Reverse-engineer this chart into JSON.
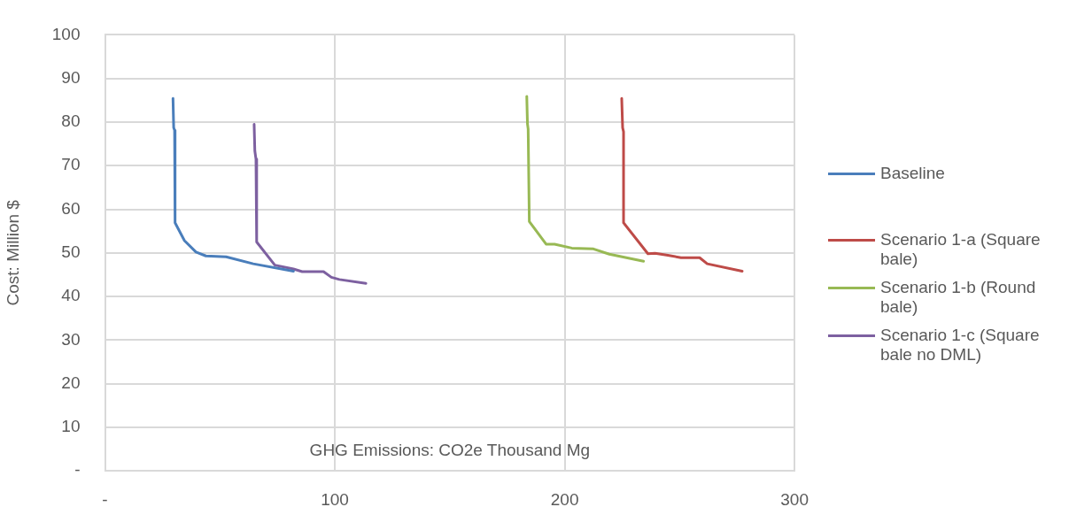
{
  "chart_data": {
    "type": "line",
    "xlabel": "GHG Emissions: CO2e Thousand Mg",
    "ylabel": "Cost: Million $",
    "xlim": [
      0,
      300
    ],
    "xticks": [
      {
        "value": 0,
        "label": "-"
      },
      100,
      200,
      300
    ],
    "ylim": [
      0,
      100
    ],
    "yticks": [
      {
        "value": 0,
        "label": "-"
      },
      10,
      20,
      30,
      40,
      50,
      60,
      70,
      80,
      90,
      100
    ],
    "grid": true,
    "legend": "right",
    "marker": "none",
    "line_style": "solid",
    "series": [
      {
        "name": "Baseline",
        "color": "#4a7ebb",
        "x": [
          29.6,
          29.9,
          30.3,
          30.5,
          34.6,
          39.6,
          43.9,
          52.7,
          64.5,
          82
        ],
        "values": [
          85.4,
          78.7,
          78.1,
          56.9,
          52.8,
          50.2,
          49.3,
          49.1,
          47.5,
          45.8
        ]
      },
      {
        "name": "Scenario 1-a (Square bale)",
        "color": "#be4b48",
        "x": [
          224.8,
          225.2,
          225.6,
          225.6,
          236.2,
          239.3,
          244.3,
          250.6,
          258.7,
          262,
          277.2
        ],
        "values": [
          85.4,
          78.7,
          77.8,
          56.9,
          49.8,
          49.9,
          49.5,
          48.9,
          48.9,
          47.5,
          45.8
        ]
      },
      {
        "name": "Scenario 1-b (Round bale)",
        "color": "#98b954",
        "x": [
          183.5,
          183.8,
          184.1,
          184.6,
          191.9,
          195.6,
          203.1,
          212.5,
          219.4,
          234.3
        ],
        "values": [
          85.9,
          79.6,
          78.4,
          57.2,
          52,
          52,
          51.1,
          50.9,
          49.7,
          48.1
        ]
      },
      {
        "name": "Scenario 1-c (Square bale no DML)",
        "color": "#7d60a0",
        "x": [
          64.9,
          65.2,
          65.7,
          66,
          73.9,
          82,
          85.8,
          95.1,
          98.5,
          102,
          113.5
        ],
        "values": [
          79.5,
          73.4,
          71.5,
          52.5,
          47.2,
          46.3,
          45.7,
          45.7,
          44.4,
          43.9,
          43
        ]
      }
    ]
  }
}
